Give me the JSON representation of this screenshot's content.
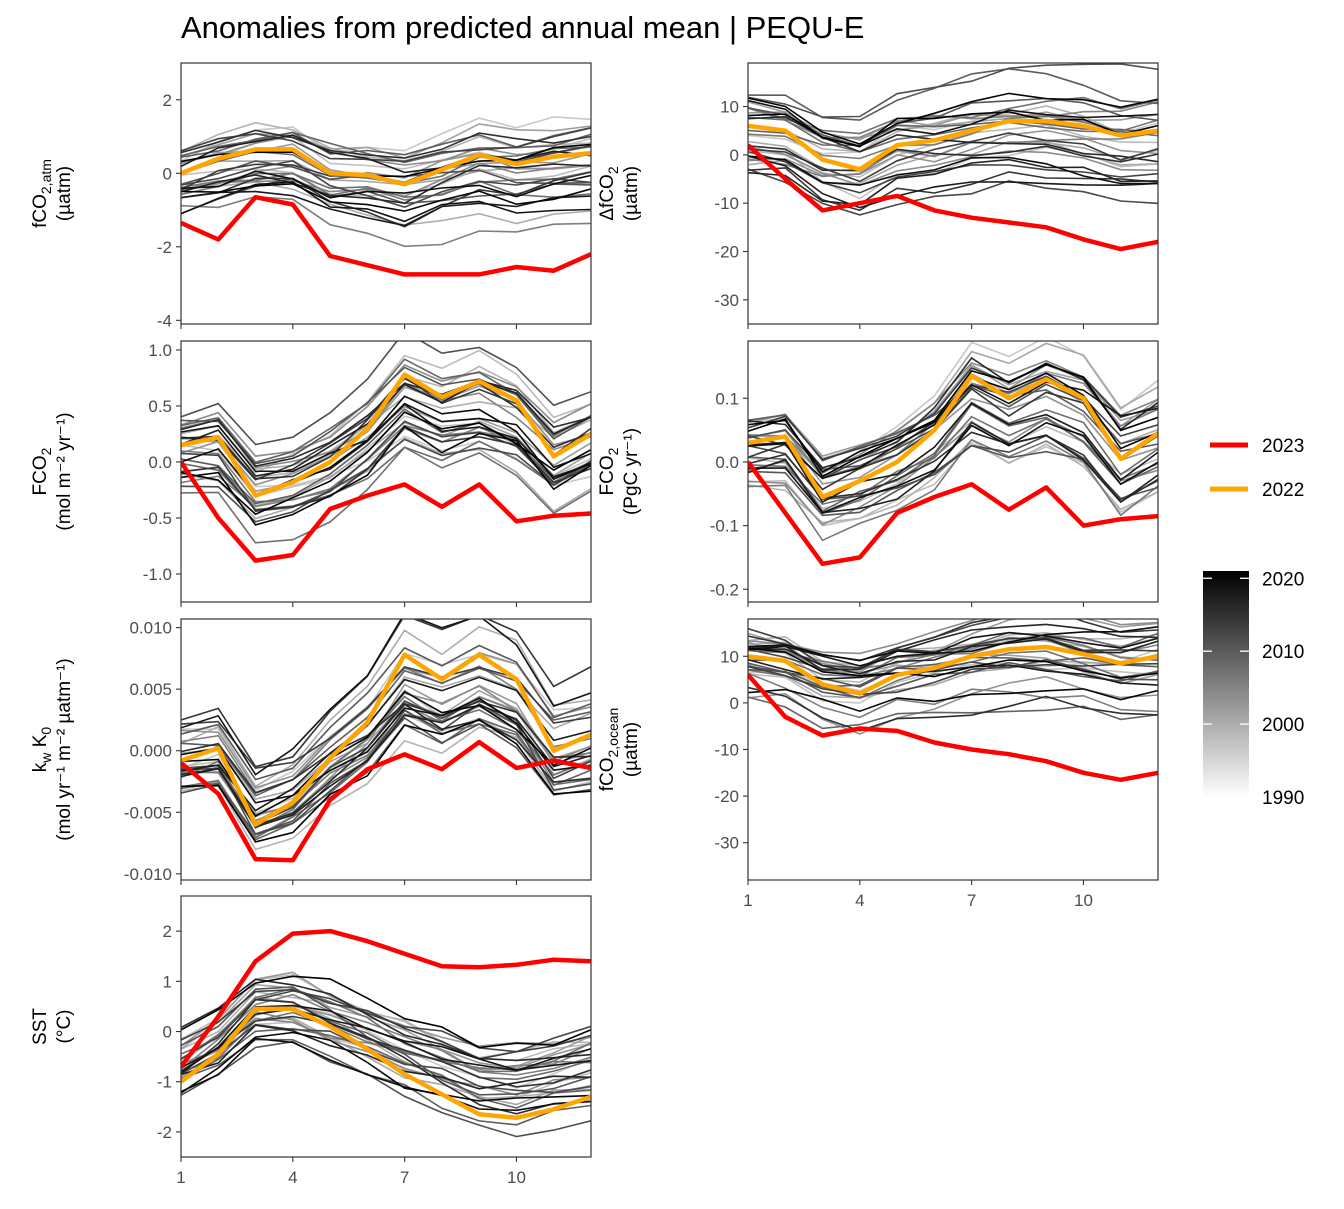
{
  "title": "Anomalies from predicted annual mean | PEQU-E",
  "legend": {
    "highlight": [
      {
        "name": "2023",
        "color": "#ff0000"
      },
      {
        "name": "2022",
        "color": "#ffa500"
      }
    ],
    "colorbar": {
      "ticks": [
        "2020",
        "2010",
        "2000",
        "1990"
      ],
      "low_color": "#ffffff",
      "high_color": "#000000",
      "range": [
        1990,
        2021
      ]
    }
  },
  "chart_data": [
    {
      "type": "line",
      "id": "fco2atm",
      "ylabel_main": "fCO",
      "ylabel_sub": "2,atm",
      "ylabel_unit": "(µatm)",
      "xlim": [
        1,
        12
      ],
      "ylim": [
        -4.1,
        3.0
      ],
      "yticks": [
        2,
        0,
        -2,
        -4
      ],
      "ytick_labels": [
        "2",
        "0",
        "-2",
        "-4"
      ],
      "xticks": [
        1,
        4,
        7,
        10
      ],
      "xtick_labels": [],
      "x": [
        1,
        2,
        3,
        4,
        5,
        6,
        7,
        8,
        9,
        10,
        11,
        12
      ],
      "series": [
        {
          "name": "2023",
          "values": [
            -1.35,
            -1.8,
            -0.65,
            -0.85,
            -2.25,
            -2.5,
            -2.75,
            -2.75,
            -2.75,
            -2.55,
            -2.65,
            -2.2
          ]
        },
        {
          "name": "2022",
          "values": [
            0.0,
            0.4,
            0.65,
            0.65,
            0.0,
            -0.05,
            -0.3,
            0.1,
            0.5,
            0.25,
            0.45,
            0.55
          ]
        }
      ]
    },
    {
      "type": "line",
      "id": "dfco2",
      "ylabel_main": "ΔfCO",
      "ylabel_sub": "2",
      "ylabel_unit": "(µatm)",
      "xlim": [
        1,
        12
      ],
      "ylim": [
        -35,
        19
      ],
      "yticks": [
        10,
        0,
        -10,
        -20,
        -30
      ],
      "ytick_labels": [
        "10",
        "0",
        "-10",
        "-20",
        "-30"
      ],
      "xticks": [
        1,
        4,
        7,
        10
      ],
      "xtick_labels": [],
      "x": [
        1,
        2,
        3,
        4,
        5,
        6,
        7,
        8,
        9,
        10,
        11,
        12
      ],
      "series": [
        {
          "name": "2023",
          "values": [
            2,
            -5,
            -11.5,
            -10,
            -8.5,
            -11.5,
            -13,
            -14,
            -15,
            -17.5,
            -19.5,
            -18
          ]
        },
        {
          "name": "2022",
          "values": [
            6,
            5,
            -1,
            -3,
            2,
            3,
            5,
            7,
            7,
            6,
            4,
            5
          ]
        }
      ]
    },
    {
      "type": "line",
      "id": "fco2_area",
      "ylabel_main": "FCO",
      "ylabel_sub": "2",
      "ylabel_unit": "(mol m⁻² yr⁻¹)",
      "xlim": [
        1,
        12
      ],
      "ylim": [
        -1.25,
        1.08
      ],
      "yticks": [
        1.0,
        0.5,
        0.0,
        -0.5,
        -1.0
      ],
      "ytick_labels": [
        "1.0",
        "0.5",
        "0.0",
        "-0.5",
        "-1.0"
      ],
      "xticks": [
        1,
        4,
        7,
        10
      ],
      "xtick_labels": [],
      "x": [
        1,
        2,
        3,
        4,
        5,
        6,
        7,
        8,
        9,
        10,
        11,
        12
      ],
      "series": [
        {
          "name": "2023",
          "values": [
            0.0,
            -0.5,
            -0.88,
            -0.83,
            -0.42,
            -0.3,
            -0.2,
            -0.4,
            -0.2,
            -0.53,
            -0.48,
            -0.46
          ]
        },
        {
          "name": "2022",
          "values": [
            0.15,
            0.22,
            -0.3,
            -0.18,
            0.0,
            0.3,
            0.78,
            0.58,
            0.72,
            0.55,
            0.05,
            0.25
          ]
        }
      ]
    },
    {
      "type": "line",
      "id": "fco2_pg",
      "ylabel_main": "FCO",
      "ylabel_sub": "2",
      "ylabel_unit": "(PgC yr⁻¹)",
      "xlim": [
        1,
        12
      ],
      "ylim": [
        -0.22,
        0.19
      ],
      "yticks": [
        0.1,
        0.0,
        -0.1,
        -0.2
      ],
      "ytick_labels": [
        "0.1",
        "0.0",
        "-0.1",
        "-0.2"
      ],
      "xticks": [
        1,
        4,
        7,
        10
      ],
      "xtick_labels": [],
      "x": [
        1,
        2,
        3,
        4,
        5,
        6,
        7,
        8,
        9,
        10,
        11,
        12
      ],
      "series": [
        {
          "name": "2023",
          "values": [
            0.0,
            -0.08,
            -0.16,
            -0.15,
            -0.08,
            -0.055,
            -0.035,
            -0.075,
            -0.04,
            -0.1,
            -0.09,
            -0.085
          ]
        },
        {
          "name": "2022",
          "values": [
            0.03,
            0.04,
            -0.055,
            -0.03,
            0.0,
            0.05,
            0.135,
            0.1,
            0.13,
            0.1,
            0.005,
            0.045
          ]
        }
      ]
    },
    {
      "type": "line",
      "id": "kwk0",
      "ylabel_main": "k",
      "ylabel_sub": "w",
      "ylabel_main2": " K",
      "ylabel_sub2": "0",
      "ylabel_unit": "(mol yr⁻¹ m⁻² µatm⁻¹)",
      "xlim": [
        1,
        12
      ],
      "ylim": [
        -0.0105,
        0.0107
      ],
      "yticks": [
        0.01,
        0.005,
        0.0,
        -0.005,
        -0.01
      ],
      "ytick_labels": [
        "0.010",
        "0.005",
        "0.000",
        "-0.005",
        "-0.010"
      ],
      "xticks": [
        1,
        4,
        7,
        10
      ],
      "xtick_labels": [],
      "x": [
        1,
        2,
        3,
        4,
        5,
        6,
        7,
        8,
        9,
        10,
        11,
        12
      ],
      "series": [
        {
          "name": "2023",
          "values": [
            -0.001,
            -0.0035,
            -0.0088,
            -0.0089,
            -0.004,
            -0.0015,
            -0.0003,
            -0.0015,
            0.0007,
            -0.0014,
            -0.0008,
            -0.0014
          ]
        },
        {
          "name": "2022",
          "values": [
            -0.0008,
            0.0002,
            -0.006,
            -0.0042,
            -0.0006,
            0.0023,
            0.0078,
            0.0058,
            0.0078,
            0.0058,
            0.0,
            0.0013
          ]
        }
      ]
    },
    {
      "type": "line",
      "id": "fco2ocean",
      "ylabel_main": "fCO",
      "ylabel_sub": "2,ocean",
      "ylabel_unit": "(µatm)",
      "xlim": [
        1,
        12
      ],
      "ylim": [
        -38,
        18
      ],
      "yticks": [
        10,
        0,
        -10,
        -20,
        -30
      ],
      "ytick_labels": [
        "10",
        "0",
        "-10",
        "-20",
        "-30"
      ],
      "xticks": [
        1,
        4,
        7,
        10
      ],
      "xtick_labels": [
        "1",
        "4",
        "7",
        "10"
      ],
      "x": [
        1,
        2,
        3,
        4,
        5,
        6,
        7,
        8,
        9,
        10,
        11,
        12
      ],
      "series": [
        {
          "name": "2023",
          "values": [
            6,
            -3,
            -7,
            -5.5,
            -6,
            -8.5,
            -10,
            -11,
            -12.5,
            -15,
            -16.5,
            -15
          ]
        },
        {
          "name": "2022",
          "values": [
            10,
            9,
            4,
            2,
            6,
            7.5,
            10,
            11.5,
            12,
            10.5,
            8.5,
            10
          ]
        }
      ]
    },
    {
      "type": "line",
      "id": "sst",
      "ylabel_main": "SST",
      "ylabel_sub": "",
      "ylabel_unit": "(°C)",
      "xlim": [
        1,
        12
      ],
      "ylim": [
        -2.5,
        2.7
      ],
      "yticks": [
        2,
        1,
        0,
        -1,
        -2
      ],
      "ytick_labels": [
        "2",
        "1",
        "0",
        "-1",
        "-2"
      ],
      "xticks": [
        1,
        4,
        7,
        10
      ],
      "xtick_labels": [
        "1",
        "4",
        "7",
        "10"
      ],
      "x": [
        1,
        2,
        3,
        4,
        5,
        6,
        7,
        8,
        9,
        10,
        11,
        12
      ],
      "series": [
        {
          "name": "2023",
          "values": [
            -0.7,
            0.3,
            1.4,
            1.95,
            2.0,
            1.8,
            1.55,
            1.3,
            1.28,
            1.33,
            1.43,
            1.4
          ]
        },
        {
          "name": "2022",
          "values": [
            -1.0,
            -0.45,
            0.45,
            0.45,
            0.1,
            -0.35,
            -0.85,
            -1.25,
            -1.65,
            -1.72,
            -1.55,
            -1.3
          ]
        }
      ]
    }
  ]
}
